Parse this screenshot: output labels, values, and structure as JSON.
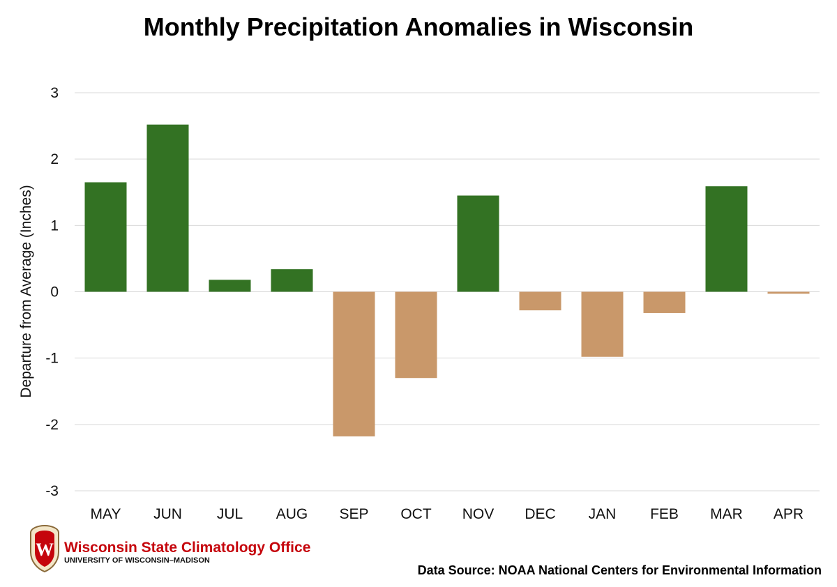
{
  "chart_data": {
    "type": "bar",
    "title": "Monthly Precipitation Anomalies in Wisconsin",
    "ylabel": "Departure from Average (Inches)",
    "xlabel": "",
    "categories": [
      "MAY",
      "JUN",
      "JUL",
      "AUG",
      "SEP",
      "OCT",
      "NOV",
      "DEC",
      "JAN",
      "FEB",
      "MAR",
      "APR"
    ],
    "values": [
      1.65,
      2.52,
      0.18,
      0.34,
      -2.18,
      -1.3,
      1.45,
      -0.28,
      -0.98,
      -0.32,
      1.59,
      -0.03
    ],
    "ylim": [
      -3,
      3
    ],
    "yticks": [
      "3",
      "2",
      "1",
      "0",
      "-1",
      "-2",
      "-3"
    ],
    "ytick_values": [
      3,
      2,
      1,
      0,
      -1,
      -2,
      -3
    ],
    "grid": true,
    "colors": {
      "positive": "#337223",
      "negative": "#c9986a",
      "grid": "#d9d9d9"
    }
  },
  "logo": {
    "name": "Wisconsin State Climatology Office",
    "subtitle": "UNIVERSITY OF WISCONSIN–MADISON",
    "crest_letter": "W",
    "color": "#c5050c"
  },
  "source": "Data Source: NOAA National Centers for Environmental Information"
}
